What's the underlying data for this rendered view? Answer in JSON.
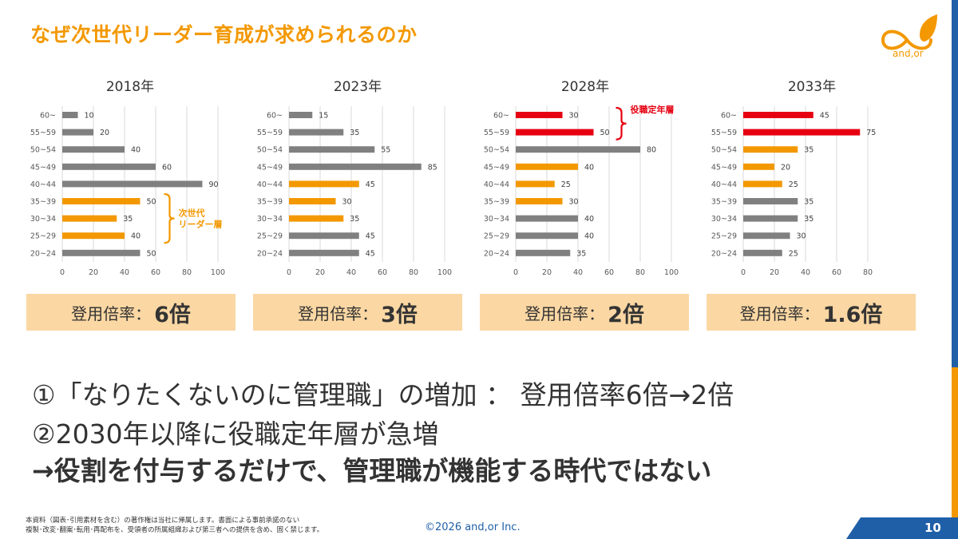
{
  "slide": {
    "title": "なぜ次世代リーダー育成が求められるのか",
    "logo_text": "and,or",
    "page_number": "10",
    "copyright": "©2026 and,or Inc.",
    "footer_line1": "本資料（図表･引用素材を含む）の著作権は当社に帰属します。書面による事前承諾のない",
    "footer_line2": "複製･改変･翻案･転用･再配布を、受領者の所属組織および第三者への提供を含め、固く禁じます。",
    "notes": [
      "①「なりたくないのに管理職」の増加 ： 登用倍率6倍→2倍",
      "②2030年以降に役職定年層が急増",
      "→役割を付与するだけで、管理職が機能する時代ではない"
    ]
  },
  "colors": {
    "gray_bar": "#808080",
    "orange_bar": "#F39800",
    "red_bar": "#E60012",
    "title_orange": "#F39800",
    "box_fill": "#FBD7A3",
    "blue": "#1F5FA8"
  },
  "ratio_label": "登用倍率：",
  "chart_data": [
    {
      "type": "bar",
      "orientation": "horizontal",
      "title": "2018年",
      "categories": [
        "60~",
        "55~59",
        "50~54",
        "45~49",
        "40~44",
        "35~39",
        "30~34",
        "25~29",
        "20~24"
      ],
      "values": [
        10,
        20,
        40,
        60,
        90,
        50,
        35,
        40,
        50
      ],
      "highlight": [
        "gray",
        "gray",
        "gray",
        "gray",
        "gray",
        "orange",
        "orange",
        "orange",
        "gray"
      ],
      "xlim": [
        0,
        100
      ],
      "xticks": [
        0,
        20,
        40,
        60,
        80,
        100
      ],
      "annotation": {
        "text_lines": [
          "次世代",
          "リーダー層"
        ],
        "color": "orange",
        "rows": [
          5,
          7
        ]
      },
      "ratio": "6倍"
    },
    {
      "type": "bar",
      "orientation": "horizontal",
      "title": "2023年",
      "categories": [
        "60~",
        "55~59",
        "50~54",
        "45~49",
        "40~44",
        "35~39",
        "30~34",
        "25~29",
        "20~24"
      ],
      "values": [
        15,
        35,
        55,
        85,
        45,
        30,
        35,
        45,
        45
      ],
      "highlight": [
        "gray",
        "gray",
        "gray",
        "gray",
        "orange",
        "orange",
        "orange",
        "gray",
        "gray"
      ],
      "xlim": [
        0,
        100
      ],
      "xticks": [
        0,
        20,
        40,
        60,
        80,
        100
      ],
      "ratio": "3倍"
    },
    {
      "type": "bar",
      "orientation": "horizontal",
      "title": "2028年",
      "categories": [
        "60~",
        "55~59",
        "50~54",
        "45~49",
        "40~44",
        "35~39",
        "30~34",
        "25~29",
        "20~24"
      ],
      "values": [
        30,
        50,
        80,
        40,
        25,
        30,
        40,
        40,
        35
      ],
      "highlight": [
        "red",
        "red",
        "gray",
        "orange",
        "orange",
        "orange",
        "gray",
        "gray",
        "gray"
      ],
      "xlim": [
        0,
        100
      ],
      "xticks": [
        0,
        20,
        40,
        60,
        80,
        100
      ],
      "annotation": {
        "text_lines": [
          "役職定年層"
        ],
        "color": "red",
        "rows": [
          0,
          1
        ]
      },
      "ratio": "2倍"
    },
    {
      "type": "bar",
      "orientation": "horizontal",
      "title": "2033年",
      "categories": [
        "60~",
        "55~59",
        "50~54",
        "45~49",
        "40~44",
        "35~39",
        "30~34",
        "25~29",
        "20~24"
      ],
      "values": [
        45,
        75,
        35,
        20,
        25,
        35,
        35,
        30,
        25
      ],
      "highlight": [
        "red",
        "red",
        "orange",
        "orange",
        "orange",
        "gray",
        "gray",
        "gray",
        "gray"
      ],
      "xlim": [
        0,
        80
      ],
      "xticks": [
        0,
        20,
        40,
        60,
        80
      ],
      "ratio": "1.6倍"
    }
  ]
}
